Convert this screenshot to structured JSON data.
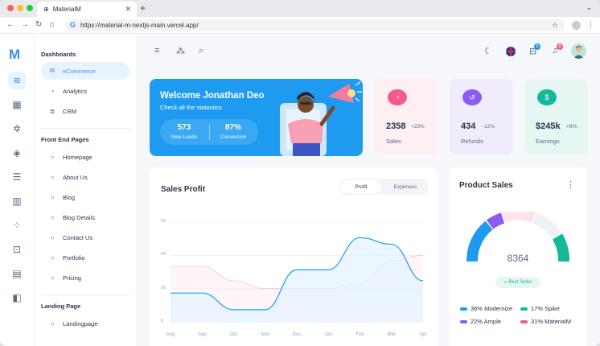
{
  "browser": {
    "tab_title": "MaterialM",
    "url": "https://material-m-nextjs-main.vercel.app/"
  },
  "brand": {
    "logo_text": "M"
  },
  "sidebar": {
    "sections": [
      {
        "heading": "Dashboards",
        "items": [
          {
            "label": "eCommerce",
            "icon": "layers-icon",
            "active": true
          },
          {
            "label": "Analytics",
            "icon": "chart-icon"
          },
          {
            "label": "CRM",
            "icon": "database-icon"
          }
        ]
      },
      {
        "heading": "Front End Pages",
        "items": [
          {
            "label": "Homepage",
            "icon": "circle-icon"
          },
          {
            "label": "About Us",
            "icon": "circle-icon"
          },
          {
            "label": "Blog",
            "icon": "circle-icon"
          },
          {
            "label": "Blog Details",
            "icon": "circle-icon"
          },
          {
            "label": "Contact Us",
            "icon": "circle-icon"
          },
          {
            "label": "Portfolio",
            "icon": "circle-icon"
          },
          {
            "label": "Pricing",
            "icon": "circle-icon"
          }
        ]
      },
      {
        "heading": "Landing Page",
        "items": [
          {
            "label": "Landingpage",
            "icon": "circle-icon"
          }
        ]
      }
    ]
  },
  "header": {
    "cart_count": "5",
    "notif_count": "8"
  },
  "welcome": {
    "title": "Welcome Jonathan Deo",
    "subtitle": "Check all the statastics",
    "stats": [
      {
        "value": "573",
        "label": "New Leads"
      },
      {
        "value": "87%",
        "label": "Conversion"
      }
    ]
  },
  "cards": [
    {
      "value": "2358",
      "change": "+23%",
      "label": "Sales",
      "bg": "#fdeff2",
      "icon_bg": "#f25c8a"
    },
    {
      "value": "434",
      "change": "-12%",
      "label": "Refunds",
      "bg": "#f1ecfb",
      "icon_bg": "#8c5cf0"
    },
    {
      "value": "$245k",
      "change": "+8%",
      "label": "Earnings",
      "bg": "#e6f7f3",
      "icon_bg": "#14b89a"
    }
  ],
  "sales_profit": {
    "title": "Sales Profit",
    "toggle": [
      "Profit",
      "Expenses"
    ]
  },
  "chart_data": {
    "type": "area",
    "categories": [
      "Aug",
      "Sep",
      "Oct",
      "Nov",
      "Dec",
      "Jan",
      "Feb",
      "Mar",
      "Apr"
    ],
    "yticks": [
      "90",
      "60",
      "30",
      "0"
    ],
    "ylim": [
      0,
      90
    ],
    "series": [
      {
        "values": [
          26,
          26,
          11,
          11,
          47,
          47,
          76,
          70,
          37
        ]
      },
      {
        "values": [
          50,
          50,
          37,
          30,
          30,
          30,
          35,
          55,
          60
        ]
      }
    ]
  },
  "product_sales": {
    "title": "Product Sales",
    "total": "8364",
    "badge": "Best Seller",
    "legend": [
      {
        "label": "36% Modernize",
        "color": "#1e9bf0"
      },
      {
        "label": "17% Spike",
        "color": "#14b89a"
      },
      {
        "label": "22% Ample",
        "color": "#8c5cf0"
      },
      {
        "label": "31% MaterialM",
        "color": "#f25c8a"
      }
    ]
  }
}
